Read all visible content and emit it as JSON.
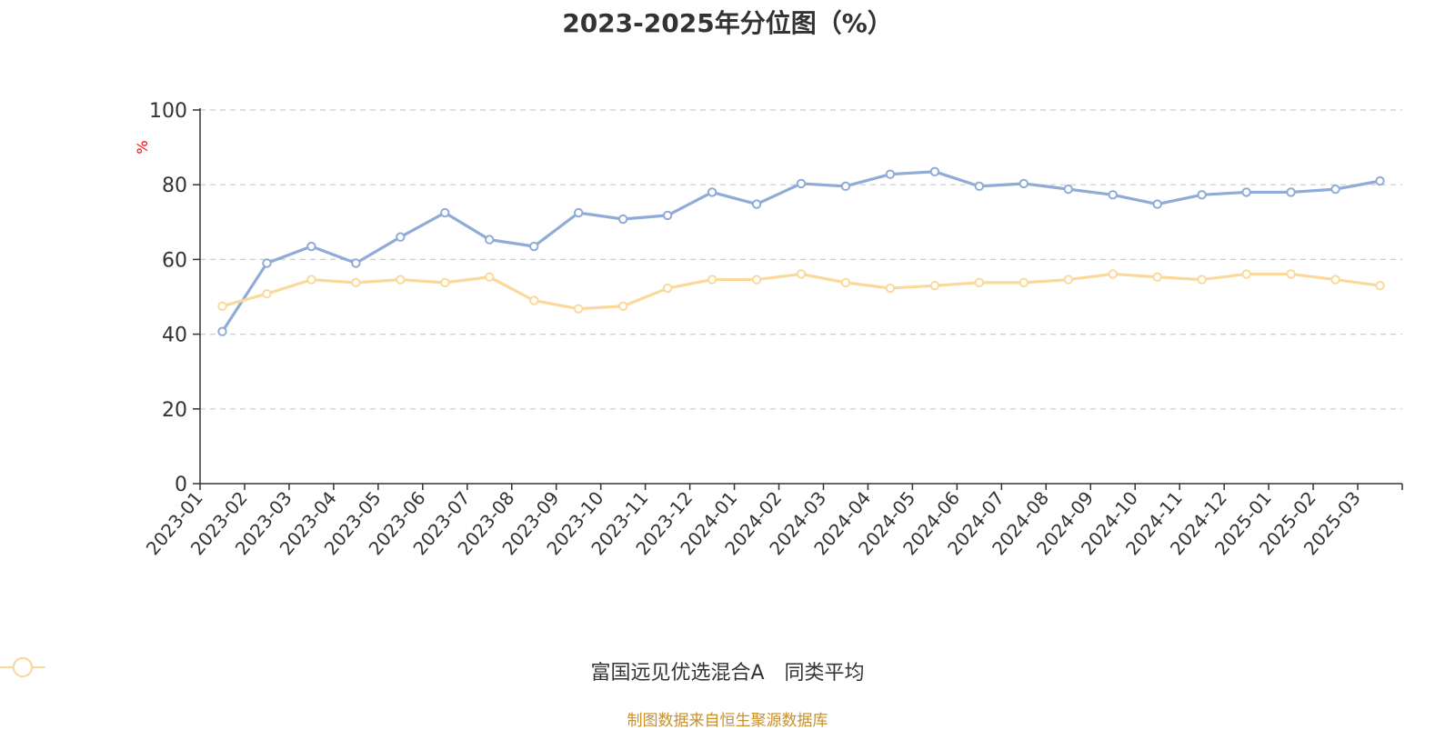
{
  "chart_data": {
    "type": "line",
    "title": "2023-2025年分位图（%）",
    "ylabel": "%",
    "xlabel": "",
    "ylim": [
      0,
      100
    ],
    "yticks": [
      0,
      20,
      40,
      60,
      80,
      100
    ],
    "grid": true,
    "legend_position": "bottom",
    "categories": [
      "2023-01",
      "2023-02",
      "2023-03",
      "2023-04",
      "2023-05",
      "2023-06",
      "2023-07",
      "2023-08",
      "2023-09",
      "2023-10",
      "2023-11",
      "2023-12",
      "2024-01",
      "2024-02",
      "2024-03",
      "2024-04",
      "2024-05",
      "2024-06",
      "2024-07",
      "2024-08",
      "2024-09",
      "2024-10",
      "2024-11",
      "2024-12",
      "2025-01",
      "2025-02",
      "2025-03"
    ],
    "series": [
      {
        "name": "富国远见优选混合A",
        "color": "#8fabd8",
        "values": [
          40.7,
          59.0,
          63.5,
          59.0,
          66.0,
          72.5,
          65.3,
          63.5,
          72.5,
          70.8,
          71.8,
          78.0,
          74.8,
          80.3,
          79.6,
          82.8,
          83.5,
          79.6,
          80.3,
          78.8,
          77.3,
          74.8,
          77.3,
          78.0,
          78.0,
          78.8,
          81.0
        ]
      },
      {
        "name": "同类平均",
        "color": "#fbd99a",
        "values": [
          47.5,
          50.8,
          54.6,
          53.8,
          54.6,
          53.8,
          55.3,
          49.0,
          46.8,
          47.5,
          52.3,
          54.6,
          54.6,
          56.1,
          53.8,
          52.3,
          53.0,
          53.8,
          53.8,
          54.6,
          56.1,
          55.3,
          54.6,
          56.1,
          56.1,
          54.6,
          53.0
        ]
      }
    ]
  },
  "source_text": "制图数据来自恒生聚源数据库",
  "colors": {
    "axis": "#333333",
    "grid": "#cccccc",
    "unit_label": "#ff0000",
    "source_text": "#c8902a",
    "title": "#333333"
  }
}
